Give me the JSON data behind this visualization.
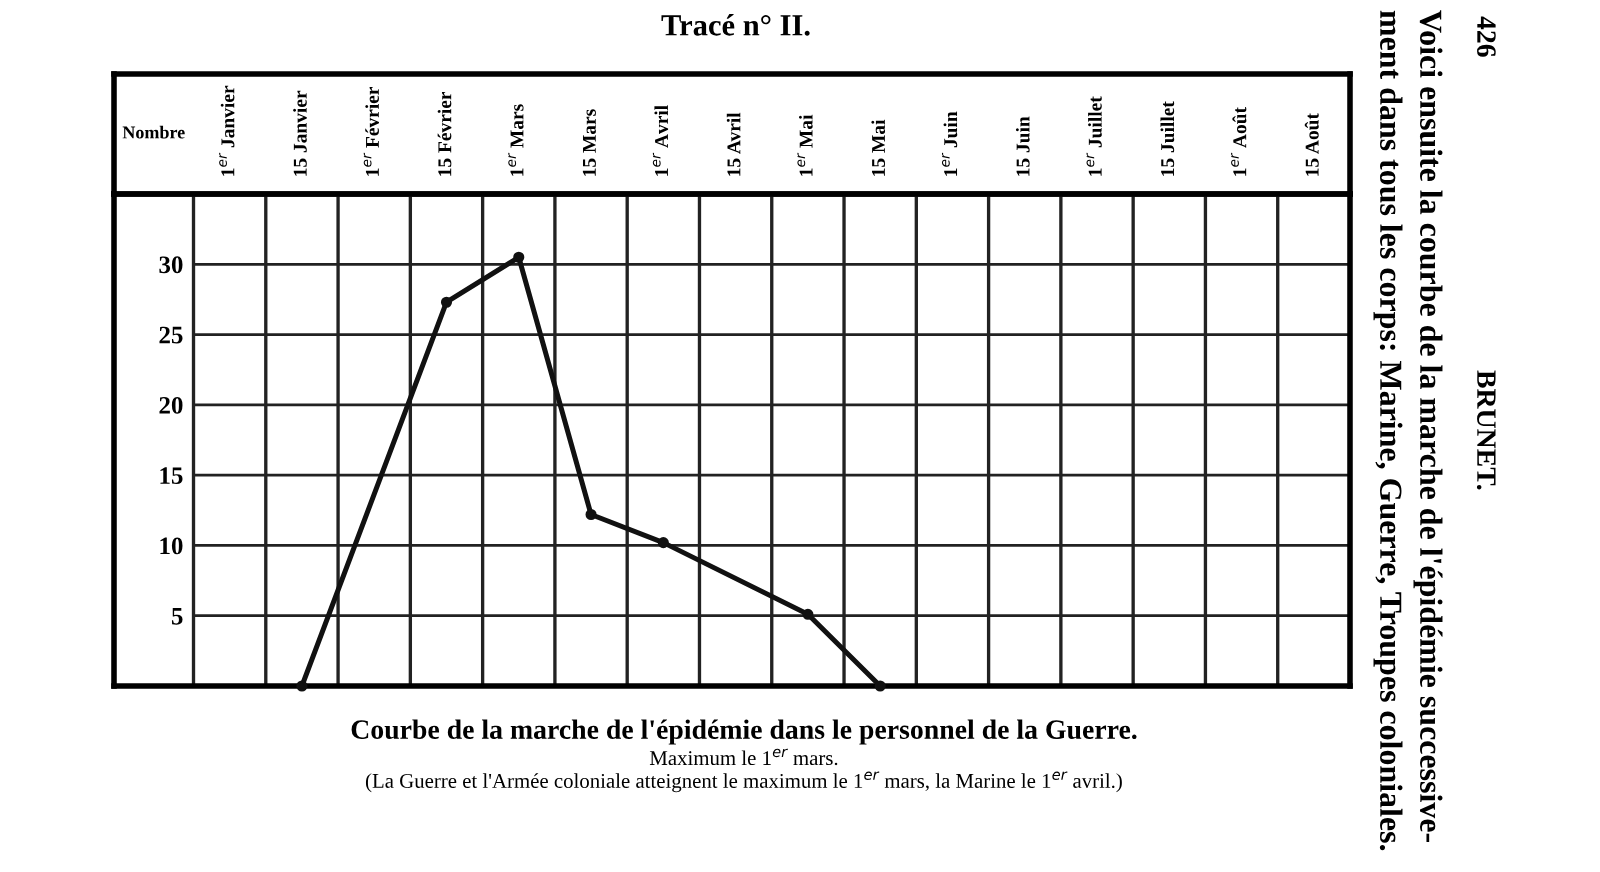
{
  "chart_data": {
    "type": "line",
    "title": "Tracé n° II.",
    "ylabel": "Nombre",
    "categories": [
      "1$^{er}$ Janvier",
      "15 Janvier",
      "1$^{er}$ Février",
      "15 Février",
      "1$^{er}$ Mars",
      "15 Mars",
      "1$^{er}$ Avril",
      "15 Avril",
      "1$^{er}$ Mai",
      "15 Mai",
      "1$^{er}$ Juin",
      "15 Juin",
      "1$^{er}$ Juillet",
      "15 Juillet",
      "1$^{er}$ Août",
      "15 Août"
    ],
    "series": [
      {
        "color": "#111111",
        "values": [
          null,
          0,
          null,
          27.3,
          30.5,
          12.2,
          10.2,
          null,
          5.1,
          0,
          null,
          null,
          null,
          null,
          null,
          null
        ]
      }
    ],
    "ylim": [
      0,
      35
    ],
    "yticks": [
      5,
      10,
      15,
      20,
      25,
      30
    ],
    "grid": true,
    "marker": "circle",
    "line_style": "solid",
    "annotations": [
      "Courbe de la marche de l'épidémie dans le personnel de la Guerre.",
      "Maximum le 1$^{er}$ mars.",
      "(La Guerre et l'Armée coloniale atteignent le maximum le 1$^{er}$ mars, la Marine le 1$^{er}$ avril.)",
      "426",
      "BRUNET.",
      "Voici ensuite la courbe de la marche de l'épidémie successive-",
      "ment dans tous les corps: Marine, Guerre, Troupes coloniales."
    ]
  }
}
